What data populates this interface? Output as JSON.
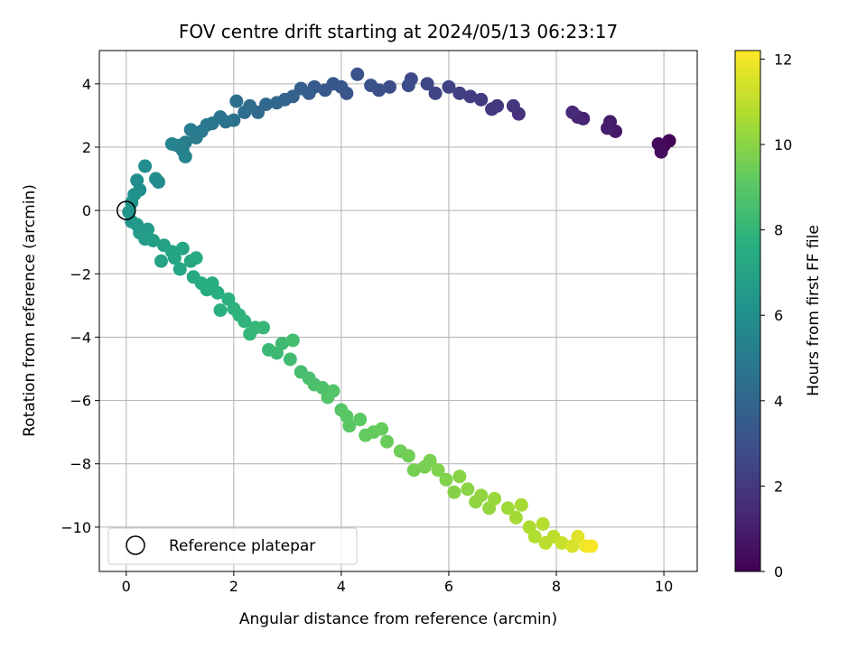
{
  "chart_data": {
    "type": "scatter",
    "title": "FOV centre drift starting at 2024/05/13 06:23:17",
    "xlabel": "Angular distance from reference (arcmin)",
    "ylabel": "Rotation from reference (arcmin)",
    "xlim": [
      -0.5,
      10.62
    ],
    "ylim": [
      -11.4,
      5.05
    ],
    "xticks": [
      "0",
      "2",
      "4",
      "6",
      "8",
      "10"
    ],
    "yticks": [
      "−10",
      "−8",
      "−6",
      "−4",
      "−2",
      "0",
      "2",
      "4"
    ],
    "grid": true,
    "colorbar": {
      "label": "Hours from first FF file",
      "range": [
        0,
        12.2
      ],
      "ticks": [
        "0",
        "2",
        "4",
        "6",
        "8",
        "10",
        "12"
      ],
      "colormap": "viridis"
    },
    "legend": {
      "placement": "lower-left",
      "entries": [
        "Reference platepar"
      ]
    },
    "reference_point": {
      "x": 0,
      "y": 0
    },
    "series": [
      {
        "color_by": "hours",
        "points": [
          {
            "x": 10.1,
            "y": 2.2,
            "h": 0.1
          },
          {
            "x": 10.0,
            "y": 2.05,
            "h": 0.2
          },
          {
            "x": 9.9,
            "y": 2.1,
            "h": 0.3
          },
          {
            "x": 9.95,
            "y": 1.85,
            "h": 0.4
          },
          {
            "x": 9.1,
            "y": 2.5,
            "h": 0.8
          },
          {
            "x": 9.0,
            "y": 2.8,
            "h": 0.9
          },
          {
            "x": 8.95,
            "y": 2.6,
            "h": 1.0
          },
          {
            "x": 8.5,
            "y": 2.9,
            "h": 1.2
          },
          {
            "x": 8.4,
            "y": 2.95,
            "h": 1.3
          },
          {
            "x": 8.3,
            "y": 3.1,
            "h": 1.4
          },
          {
            "x": 7.3,
            "y": 3.05,
            "h": 1.7
          },
          {
            "x": 7.2,
            "y": 3.3,
            "h": 1.8
          },
          {
            "x": 6.9,
            "y": 3.3,
            "h": 1.9
          },
          {
            "x": 6.8,
            "y": 3.2,
            "h": 2.0
          },
          {
            "x": 6.6,
            "y": 3.5,
            "h": 2.1
          },
          {
            "x": 6.4,
            "y": 3.6,
            "h": 2.2
          },
          {
            "x": 6.2,
            "y": 3.7,
            "h": 2.3
          },
          {
            "x": 6.0,
            "y": 3.9,
            "h": 2.4
          },
          {
            "x": 5.75,
            "y": 3.7,
            "h": 2.5
          },
          {
            "x": 5.6,
            "y": 4.0,
            "h": 2.6
          },
          {
            "x": 5.3,
            "y": 4.15,
            "h": 2.7
          },
          {
            "x": 5.25,
            "y": 3.95,
            "h": 2.75
          },
          {
            "x": 4.9,
            "y": 3.9,
            "h": 2.85
          },
          {
            "x": 4.7,
            "y": 3.8,
            "h": 2.95
          },
          {
            "x": 4.55,
            "y": 3.95,
            "h": 3.0
          },
          {
            "x": 4.3,
            "y": 4.3,
            "h": 3.1
          },
          {
            "x": 4.1,
            "y": 3.7,
            "h": 3.2
          },
          {
            "x": 4.0,
            "y": 3.9,
            "h": 3.3
          },
          {
            "x": 3.85,
            "y": 4.0,
            "h": 3.35
          },
          {
            "x": 3.7,
            "y": 3.8,
            "h": 3.45
          },
          {
            "x": 3.5,
            "y": 3.9,
            "h": 3.5
          },
          {
            "x": 3.4,
            "y": 3.7,
            "h": 3.6
          },
          {
            "x": 3.25,
            "y": 3.85,
            "h": 3.7
          },
          {
            "x": 3.1,
            "y": 3.6,
            "h": 3.8
          },
          {
            "x": 2.95,
            "y": 3.5,
            "h": 3.9
          },
          {
            "x": 2.8,
            "y": 3.4,
            "h": 4.0
          },
          {
            "x": 2.6,
            "y": 3.35,
            "h": 4.1
          },
          {
            "x": 2.45,
            "y": 3.1,
            "h": 4.2
          },
          {
            "x": 2.3,
            "y": 3.3,
            "h": 4.3
          },
          {
            "x": 2.2,
            "y": 3.1,
            "h": 4.35
          },
          {
            "x": 2.05,
            "y": 3.45,
            "h": 4.4
          },
          {
            "x": 2.0,
            "y": 2.85,
            "h": 4.5
          },
          {
            "x": 1.85,
            "y": 2.8,
            "h": 4.6
          },
          {
            "x": 1.75,
            "y": 2.95,
            "h": 4.65
          },
          {
            "x": 1.6,
            "y": 2.75,
            "h": 4.7
          },
          {
            "x": 1.5,
            "y": 2.7,
            "h": 4.8
          },
          {
            "x": 1.4,
            "y": 2.5,
            "h": 4.9
          },
          {
            "x": 1.3,
            "y": 2.3,
            "h": 5.0
          },
          {
            "x": 1.2,
            "y": 2.55,
            "h": 5.05
          },
          {
            "x": 1.1,
            "y": 2.15,
            "h": 5.1
          },
          {
            "x": 1.05,
            "y": 1.9,
            "h": 5.2
          },
          {
            "x": 0.95,
            "y": 2.05,
            "h": 5.3
          },
          {
            "x": 0.85,
            "y": 2.1,
            "h": 5.35
          },
          {
            "x": 1.1,
            "y": 1.7,
            "h": 5.4
          },
          {
            "x": 0.6,
            "y": 0.9,
            "h": 5.8
          },
          {
            "x": 0.55,
            "y": 1.0,
            "h": 5.85
          },
          {
            "x": 0.35,
            "y": 1.4,
            "h": 5.9
          },
          {
            "x": 0.2,
            "y": 0.95,
            "h": 6.0
          },
          {
            "x": 0.25,
            "y": 0.65,
            "h": 6.05
          },
          {
            "x": 0.15,
            "y": 0.5,
            "h": 6.1
          },
          {
            "x": 0.1,
            "y": 0.25,
            "h": 6.2
          },
          {
            "x": 0.05,
            "y": -0.05,
            "h": 6.3
          },
          {
            "x": 0.1,
            "y": -0.35,
            "h": 6.4
          },
          {
            "x": 0.2,
            "y": -0.45,
            "h": 6.5
          },
          {
            "x": 0.25,
            "y": -0.7,
            "h": 6.6
          },
          {
            "x": 0.4,
            "y": -0.6,
            "h": 6.65
          },
          {
            "x": 0.35,
            "y": -0.9,
            "h": 6.7
          },
          {
            "x": 0.5,
            "y": -0.95,
            "h": 6.8
          },
          {
            "x": 0.7,
            "y": -1.1,
            "h": 6.9
          },
          {
            "x": 0.65,
            "y": -1.6,
            "h": 7.0
          },
          {
            "x": 0.85,
            "y": -1.3,
            "h": 7.05
          },
          {
            "x": 0.9,
            "y": -1.5,
            "h": 7.1
          },
          {
            "x": 1.05,
            "y": -1.2,
            "h": 7.15
          },
          {
            "x": 1.0,
            "y": -1.85,
            "h": 7.2
          },
          {
            "x": 1.2,
            "y": -1.6,
            "h": 7.25
          },
          {
            "x": 1.25,
            "y": -2.1,
            "h": 7.3
          },
          {
            "x": 1.3,
            "y": -1.5,
            "h": 7.35
          },
          {
            "x": 1.4,
            "y": -2.3,
            "h": 7.45
          },
          {
            "x": 1.5,
            "y": -2.5,
            "h": 7.5
          },
          {
            "x": 1.6,
            "y": -2.3,
            "h": 7.55
          },
          {
            "x": 1.7,
            "y": -2.6,
            "h": 7.6
          },
          {
            "x": 1.75,
            "y": -3.15,
            "h": 7.7
          },
          {
            "x": 1.9,
            "y": -2.8,
            "h": 7.75
          },
          {
            "x": 2.0,
            "y": -3.1,
            "h": 7.8
          },
          {
            "x": 2.1,
            "y": -3.3,
            "h": 7.85
          },
          {
            "x": 2.2,
            "y": -3.5,
            "h": 7.9
          },
          {
            "x": 2.3,
            "y": -3.9,
            "h": 8.0
          },
          {
            "x": 2.4,
            "y": -3.7,
            "h": 8.05
          },
          {
            "x": 2.55,
            "y": -3.7,
            "h": 8.1
          },
          {
            "x": 2.65,
            "y": -4.4,
            "h": 8.2
          },
          {
            "x": 2.8,
            "y": -4.5,
            "h": 8.25
          },
          {
            "x": 2.9,
            "y": -4.2,
            "h": 8.3
          },
          {
            "x": 3.05,
            "y": -4.7,
            "h": 8.4
          },
          {
            "x": 3.1,
            "y": -4.1,
            "h": 8.45
          },
          {
            "x": 3.25,
            "y": -5.1,
            "h": 8.5
          },
          {
            "x": 3.4,
            "y": -5.3,
            "h": 8.6
          },
          {
            "x": 3.5,
            "y": -5.5,
            "h": 8.65
          },
          {
            "x": 3.65,
            "y": -5.6,
            "h": 8.7
          },
          {
            "x": 3.75,
            "y": -5.9,
            "h": 8.8
          },
          {
            "x": 3.85,
            "y": -5.7,
            "h": 8.85
          },
          {
            "x": 4.0,
            "y": -6.3,
            "h": 8.95
          },
          {
            "x": 4.1,
            "y": -6.5,
            "h": 9.0
          },
          {
            "x": 4.15,
            "y": -6.8,
            "h": 9.05
          },
          {
            "x": 4.35,
            "y": -6.6,
            "h": 9.1
          },
          {
            "x": 4.45,
            "y": -7.1,
            "h": 9.2
          },
          {
            "x": 4.6,
            "y": -7.0,
            "h": 9.25
          },
          {
            "x": 4.75,
            "y": -6.9,
            "h": 9.3
          },
          {
            "x": 4.85,
            "y": -7.3,
            "h": 9.35
          },
          {
            "x": 5.1,
            "y": -7.6,
            "h": 9.45
          },
          {
            "x": 5.25,
            "y": -7.75,
            "h": 9.5
          },
          {
            "x": 5.35,
            "y": -8.2,
            "h": 9.6
          },
          {
            "x": 5.55,
            "y": -8.1,
            "h": 9.65
          },
          {
            "x": 5.65,
            "y": -7.9,
            "h": 9.7
          },
          {
            "x": 5.8,
            "y": -8.2,
            "h": 9.8
          },
          {
            "x": 5.95,
            "y": -8.5,
            "h": 9.85
          },
          {
            "x": 6.1,
            "y": -8.9,
            "h": 9.9
          },
          {
            "x": 6.2,
            "y": -8.4,
            "h": 9.95
          },
          {
            "x": 6.35,
            "y": -8.8,
            "h": 10.0
          },
          {
            "x": 6.5,
            "y": -9.2,
            "h": 10.1
          },
          {
            "x": 6.6,
            "y": -9.0,
            "h": 10.15
          },
          {
            "x": 6.75,
            "y": -9.4,
            "h": 10.2
          },
          {
            "x": 6.85,
            "y": -9.1,
            "h": 10.3
          },
          {
            "x": 7.1,
            "y": -9.4,
            "h": 10.4
          },
          {
            "x": 7.25,
            "y": -9.7,
            "h": 10.5
          },
          {
            "x": 7.35,
            "y": -9.3,
            "h": 10.55
          },
          {
            "x": 7.5,
            "y": -10.0,
            "h": 10.65
          },
          {
            "x": 7.6,
            "y": -10.3,
            "h": 10.75
          },
          {
            "x": 7.75,
            "y": -9.9,
            "h": 10.8
          },
          {
            "x": 7.8,
            "y": -10.5,
            "h": 10.9
          },
          {
            "x": 7.95,
            "y": -10.3,
            "h": 11.0
          },
          {
            "x": 8.1,
            "y": -10.5,
            "h": 11.2
          },
          {
            "x": 8.3,
            "y": -10.6,
            "h": 11.5
          },
          {
            "x": 8.4,
            "y": -10.3,
            "h": 11.6
          },
          {
            "x": 8.55,
            "y": -10.6,
            "h": 11.9
          },
          {
            "x": 8.65,
            "y": -10.6,
            "h": 12.1
          }
        ]
      }
    ]
  }
}
